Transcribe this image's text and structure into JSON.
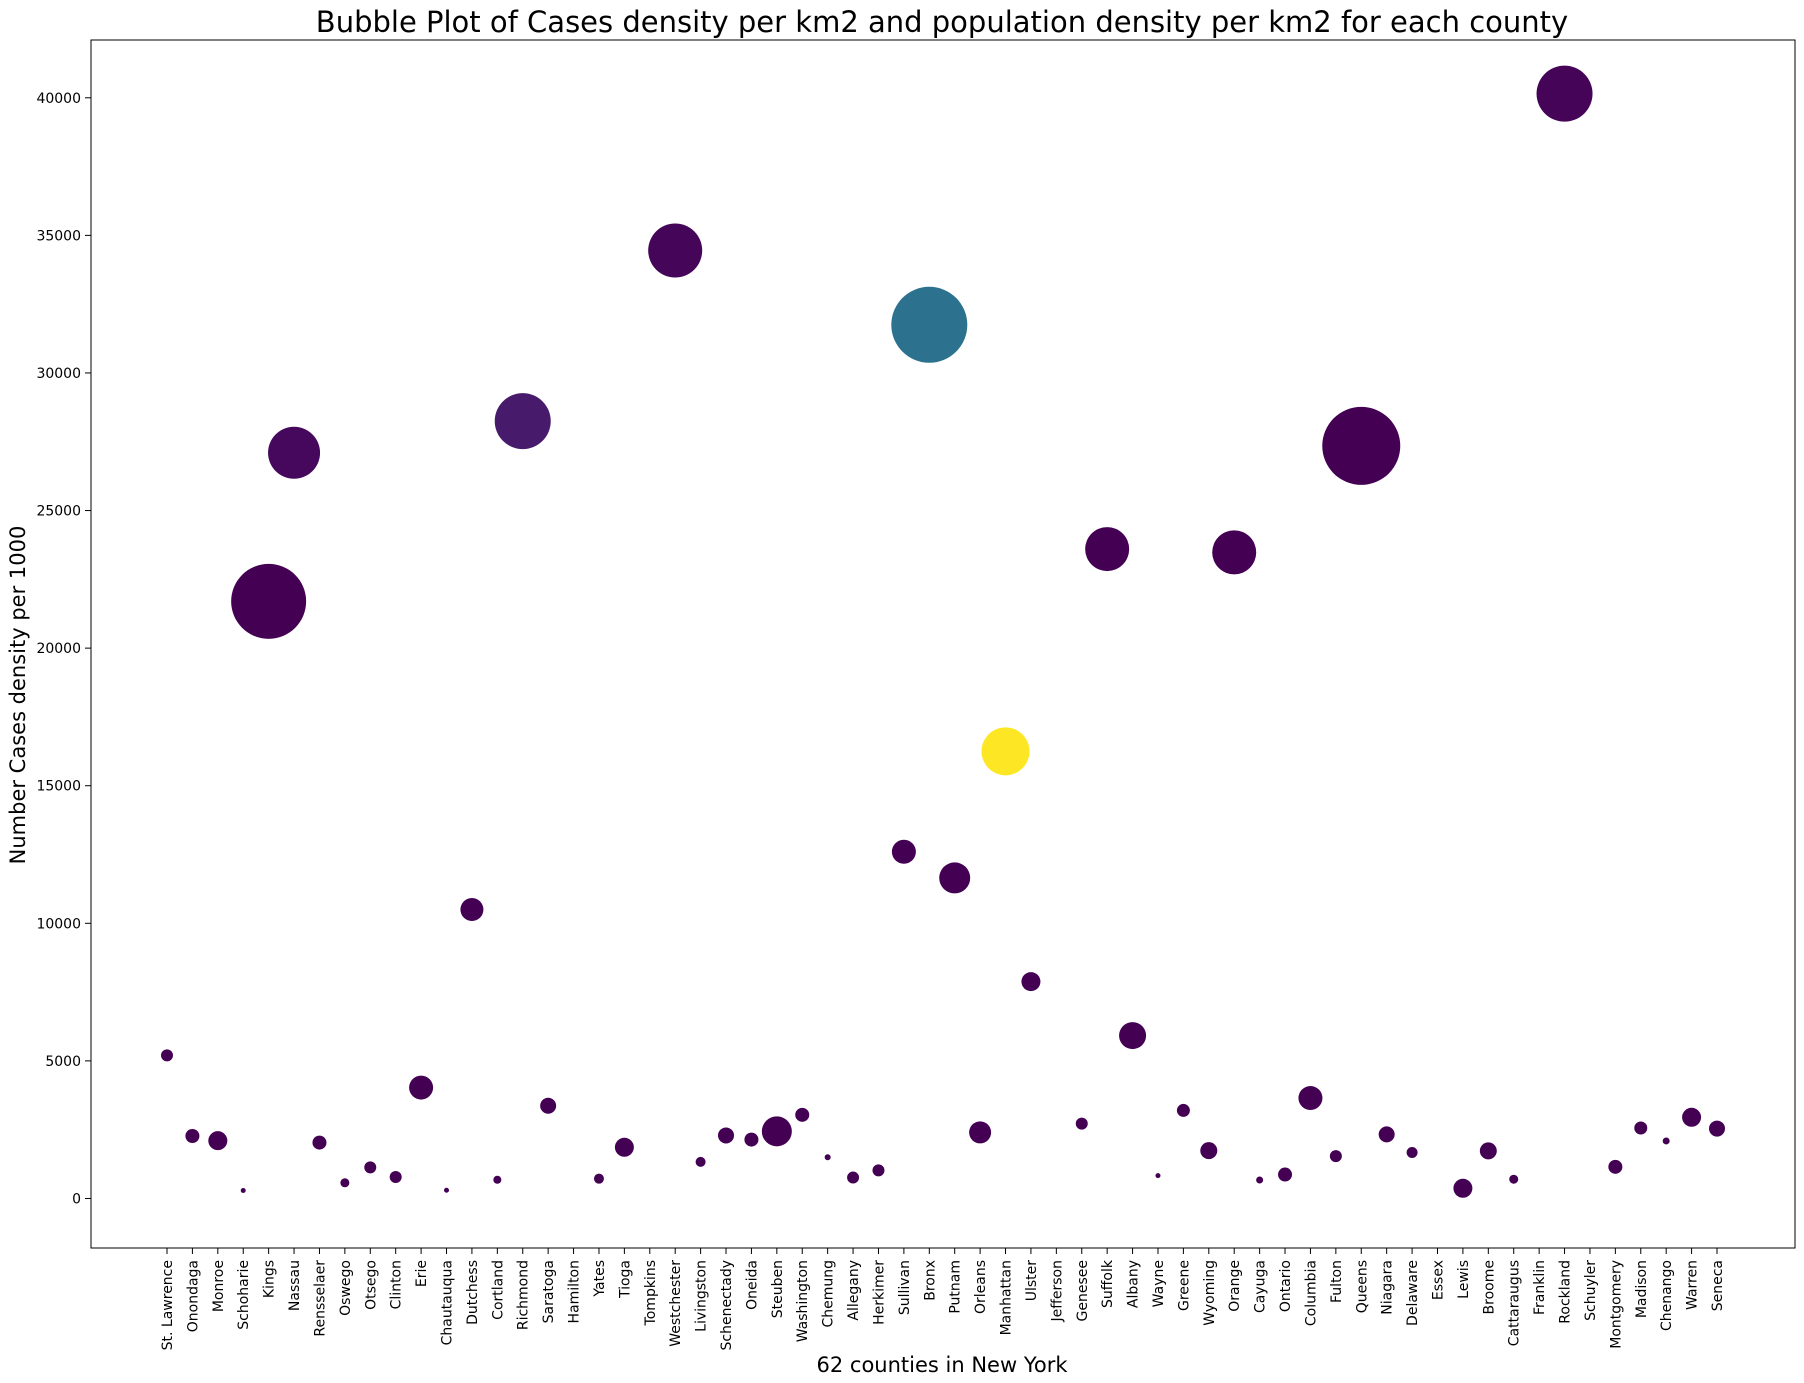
{
  "chart_data": {
    "type": "scatter",
    "title": "Bubble Plot of Cases density per km2 and population density per km2 for each county",
    "xlabel": "62 counties in New York",
    "ylabel": "Number Cases density per 1000",
    "ylim": [
      -1800,
      42100
    ],
    "yticks": [
      0,
      5000,
      10000,
      15000,
      20000,
      25000,
      30000,
      35000,
      40000
    ],
    "grid": false,
    "legend": "none",
    "colormap": "viridis",
    "categories": [
      "St. Lawrence",
      "Onondaga",
      "Monroe",
      "Schoharie",
      "Kings",
      "Nassau",
      "Rensselaer",
      "Oswego",
      "Otsego",
      "Clinton",
      "Erie",
      "Chautauqua",
      "Dutchess",
      "Cortland",
      "Richmond",
      "Saratoga",
      "Hamilton",
      "Yates",
      "Tioga",
      "Tompkins",
      "Westchester",
      "Livingston",
      "Schenectady",
      "Oneida",
      "Steuben",
      "Washington",
      "Chemung",
      "Allegany",
      "Herkimer",
      "Sullivan",
      "Bronx",
      "Putnam",
      "Orleans",
      "Manhattan",
      "Ulster",
      "Jefferson",
      "Genesee",
      "Suffolk",
      "Albany",
      "Wayne",
      "Greene",
      "Wyoming",
      "Orange",
      "Cayuga",
      "Ontario",
      "Columbia",
      "Fulton",
      "Queens",
      "Niagara",
      "Delaware",
      "Essex",
      "Lewis",
      "Broome",
      "Cattaraugus",
      "Franklin",
      "Rockland",
      "Schuyler",
      "Montgomery",
      "Madison",
      "Chenango",
      "Warren",
      "Seneca"
    ],
    "points": [
      {
        "y": 5200,
        "size": 12,
        "color": "#440154"
      },
      {
        "y": 2270,
        "size": 14,
        "color": "#440154"
      },
      {
        "y": 2100,
        "size": 19,
        "color": "#440154"
      },
      {
        "y": 290,
        "size": 5,
        "color": "#440154"
      },
      {
        "y": 21700,
        "size": 75,
        "color": "#440154"
      },
      {
        "y": 27100,
        "size": 52,
        "color": "#46085c"
      },
      {
        "y": 2030,
        "size": 14,
        "color": "#440154"
      },
      {
        "y": 570,
        "size": 9,
        "color": "#440154"
      },
      {
        "y": 1130,
        "size": 12,
        "color": "#440154"
      },
      {
        "y": 780,
        "size": 12,
        "color": "#440154"
      },
      {
        "y": 4030,
        "size": 24,
        "color": "#440154"
      },
      {
        "y": 300,
        "size": 5,
        "color": "#440154"
      },
      {
        "y": 10500,
        "size": 23,
        "color": "#440154"
      },
      {
        "y": 680,
        "size": 8,
        "color": "#440154"
      },
      {
        "y": 28250,
        "size": 56,
        "color": "#481a6c"
      },
      {
        "y": 3370,
        "size": 16,
        "color": "#440154"
      },
      {
        "y": null,
        "size": 0,
        "color": "#440154"
      },
      {
        "y": 720,
        "size": 10,
        "color": "#440154"
      },
      {
        "y": 1860,
        "size": 19,
        "color": "#440154"
      },
      {
        "y": null,
        "size": 0,
        "color": "#440154"
      },
      {
        "y": 34450,
        "size": 54,
        "color": "#450559"
      },
      {
        "y": 1330,
        "size": 10,
        "color": "#440154"
      },
      {
        "y": 2290,
        "size": 16,
        "color": "#440154"
      },
      {
        "y": 2140,
        "size": 14,
        "color": "#440154"
      },
      {
        "y": 2440,
        "size": 30,
        "color": "#440154"
      },
      {
        "y": 3040,
        "size": 14,
        "color": "#440154"
      },
      {
        "y": 1500,
        "size": 6,
        "color": "#440154"
      },
      {
        "y": 760,
        "size": 12,
        "color": "#440154"
      },
      {
        "y": 1020,
        "size": 12,
        "color": "#440154"
      },
      {
        "y": 12600,
        "size": 24,
        "color": "#440154"
      },
      {
        "y": 31750,
        "size": 76,
        "color": "#2c728e"
      },
      {
        "y": 11650,
        "size": 31,
        "color": "#440154"
      },
      {
        "y": 2400,
        "size": 22,
        "color": "#440154"
      },
      {
        "y": 16250,
        "size": 48,
        "color": "#fde725"
      },
      {
        "y": 7880,
        "size": 19,
        "color": "#440154"
      },
      {
        "y": null,
        "size": 0,
        "color": "#440154"
      },
      {
        "y": 2720,
        "size": 12,
        "color": "#440154"
      },
      {
        "y": 23600,
        "size": 44,
        "color": "#440154"
      },
      {
        "y": 5920,
        "size": 27,
        "color": "#440154"
      },
      {
        "y": 830,
        "size": 5,
        "color": "#440154"
      },
      {
        "y": 3200,
        "size": 13,
        "color": "#440154"
      },
      {
        "y": 1740,
        "size": 17,
        "color": "#440154"
      },
      {
        "y": 23480,
        "size": 44,
        "color": "#440154"
      },
      {
        "y": 670,
        "size": 7,
        "color": "#440154"
      },
      {
        "y": 870,
        "size": 14,
        "color": "#440154"
      },
      {
        "y": 3650,
        "size": 24,
        "color": "#440154"
      },
      {
        "y": 1540,
        "size": 12,
        "color": "#440154"
      },
      {
        "y": 27350,
        "size": 78,
        "color": "#440154"
      },
      {
        "y": 2330,
        "size": 16,
        "color": "#440154"
      },
      {
        "y": 1670,
        "size": 11,
        "color": "#440154"
      },
      {
        "y": null,
        "size": 0,
        "color": "#440154"
      },
      {
        "y": 370,
        "size": 19,
        "color": "#440154"
      },
      {
        "y": 1730,
        "size": 17,
        "color": "#440154"
      },
      {
        "y": 700,
        "size": 9,
        "color": "#440154"
      },
      {
        "y": null,
        "size": 0,
        "color": "#440154"
      },
      {
        "y": 40150,
        "size": 56,
        "color": "#450457"
      },
      {
        "y": null,
        "size": 0,
        "color": "#440154"
      },
      {
        "y": 1150,
        "size": 14,
        "color": "#440154"
      },
      {
        "y": 2560,
        "size": 13,
        "color": "#440154"
      },
      {
        "y": 2090,
        "size": 7,
        "color": "#440154"
      },
      {
        "y": 2950,
        "size": 19,
        "color": "#440154"
      },
      {
        "y": 2540,
        "size": 16,
        "color": "#440154"
      }
    ]
  }
}
